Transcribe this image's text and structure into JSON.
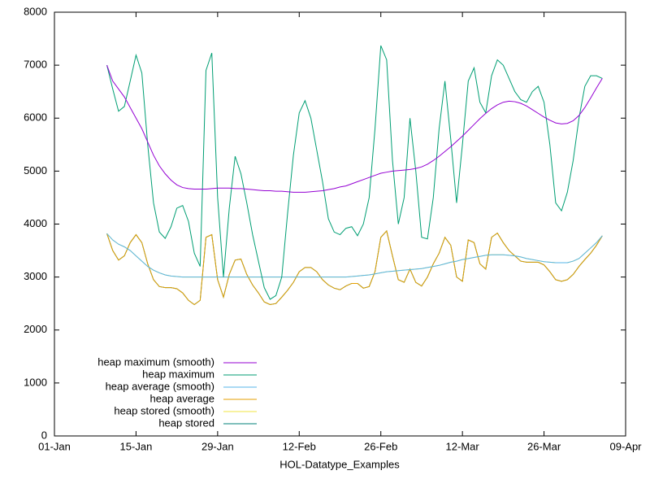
{
  "chart_data": {
    "type": "line",
    "xlabel": "HOL-Datatype_Examples",
    "xlim": [
      0,
      98
    ],
    "xticks": [
      {
        "value": 0,
        "label": "01-Jan"
      },
      {
        "value": 14,
        "label": "15-Jan"
      },
      {
        "value": 28,
        "label": "29-Jan"
      },
      {
        "value": 42,
        "label": "12-Feb"
      },
      {
        "value": 56,
        "label": "26-Feb"
      },
      {
        "value": 70,
        "label": "12-Mar"
      },
      {
        "value": 84,
        "label": "26-Mar"
      },
      {
        "value": 98,
        "label": "09-Apr"
      }
    ],
    "ylim": [
      0,
      8000
    ],
    "yticks": [
      0,
      1000,
      2000,
      3000,
      4000,
      5000,
      6000,
      7000,
      8000
    ],
    "legend": "bottom left",
    "x": [
      9,
      10,
      11,
      12,
      13,
      14,
      15,
      16,
      17,
      18,
      19,
      20,
      21,
      22,
      23,
      24,
      25,
      26,
      27,
      28,
      29,
      30,
      31,
      32,
      33,
      34,
      35,
      36,
      37,
      38,
      39,
      40,
      41,
      42,
      43,
      44,
      45,
      46,
      47,
      48,
      49,
      50,
      51,
      52,
      53,
      54,
      55,
      56,
      57,
      58,
      59,
      60,
      61,
      62,
      63,
      64,
      65,
      66,
      67,
      68,
      69,
      70,
      71,
      72,
      73,
      74,
      75,
      76,
      77,
      78,
      79,
      80,
      81,
      82,
      83,
      84,
      85,
      86,
      87,
      88,
      89,
      90,
      91,
      92,
      93,
      94
    ],
    "series": [
      {
        "name": "heap maximum (smooth)",
        "color": "#9400d3",
        "values": [
          7000,
          6700,
          6550,
          6400,
          6200,
          6000,
          5800,
          5550,
          5300,
          5100,
          4950,
          4830,
          4740,
          4690,
          4670,
          4660,
          4660,
          4660,
          4670,
          4680,
          4680,
          4680,
          4670,
          4670,
          4660,
          4650,
          4640,
          4630,
          4630,
          4620,
          4620,
          4610,
          4600,
          4600,
          4600,
          4610,
          4620,
          4630,
          4650,
          4670,
          4700,
          4720,
          4760,
          4800,
          4840,
          4880,
          4920,
          4960,
          4980,
          5000,
          5010,
          5020,
          5030,
          5050,
          5080,
          5130,
          5200,
          5280,
          5370,
          5460,
          5560,
          5660,
          5770,
          5880,
          5990,
          6090,
          6180,
          6250,
          6300,
          6320,
          6310,
          6280,
          6230,
          6160,
          6090,
          6020,
          5960,
          5910,
          5890,
          5900,
          5950,
          6050,
          6200,
          6380,
          6570,
          6750
        ]
      },
      {
        "name": "heap maximum",
        "color": "#009e73",
        "values": [
          7000,
          6550,
          6130,
          6220,
          6700,
          7190,
          6850,
          5500,
          4400,
          3850,
          3730,
          3950,
          4300,
          4350,
          4050,
          3450,
          3200,
          6900,
          7230,
          4500,
          3000,
          4300,
          5280,
          4950,
          4400,
          3800,
          3300,
          2800,
          2580,
          2650,
          3000,
          4200,
          5300,
          6100,
          6330,
          6000,
          5400,
          4800,
          4100,
          3850,
          3800,
          3920,
          3950,
          3780,
          4000,
          4500,
          5800,
          7370,
          7100,
          5200,
          4000,
          4500,
          6000,
          5000,
          3750,
          3720,
          4500,
          5800,
          6700,
          5600,
          4400,
          5500,
          6700,
          6950,
          6300,
          6100,
          6800,
          7100,
          7000,
          6750,
          6500,
          6350,
          6300,
          6500,
          6600,
          6300,
          5500,
          4400,
          4250,
          4600,
          5200,
          6000,
          6600,
          6800,
          6800,
          6750
        ]
      },
      {
        "name": "heap average (smooth)",
        "color": "#56b4e9",
        "values": [
          3820,
          3700,
          3620,
          3570,
          3500,
          3400,
          3300,
          3200,
          3130,
          3080,
          3040,
          3020,
          3010,
          3000,
          3000,
          3000,
          3000,
          3000,
          3000,
          3000,
          3000,
          3000,
          3000,
          3000,
          3000,
          3000,
          3000,
          3000,
          3000,
          3000,
          3000,
          3000,
          3000,
          3000,
          3000,
          3000,
          3000,
          3000,
          3000,
          3000,
          3000,
          3000,
          3010,
          3020,
          3030,
          3040,
          3060,
          3080,
          3100,
          3110,
          3120,
          3130,
          3140,
          3150,
          3160,
          3180,
          3200,
          3220,
          3250,
          3280,
          3300,
          3330,
          3350,
          3370,
          3390,
          3410,
          3420,
          3420,
          3420,
          3410,
          3400,
          3380,
          3350,
          3330,
          3310,
          3290,
          3280,
          3270,
          3270,
          3270,
          3300,
          3350,
          3450,
          3550,
          3650,
          3780
        ]
      },
      {
        "name": "heap average",
        "color": "#e69f00",
        "values": [
          3820,
          3500,
          3320,
          3400,
          3650,
          3800,
          3650,
          3250,
          2950,
          2820,
          2800,
          2800,
          2780,
          2700,
          2560,
          2480,
          2560,
          3750,
          3800,
          2950,
          2620,
          3050,
          3320,
          3340,
          3050,
          2850,
          2700,
          2530,
          2480,
          2500,
          2620,
          2750,
          2900,
          3100,
          3180,
          3180,
          3100,
          2950,
          2850,
          2790,
          2760,
          2830,
          2880,
          2880,
          2790,
          2820,
          3100,
          3750,
          3870,
          3400,
          2950,
          2900,
          3150,
          2900,
          2830,
          3000,
          3250,
          3450,
          3750,
          3600,
          3000,
          2920,
          3700,
          3650,
          3250,
          3150,
          3750,
          3830,
          3650,
          3500,
          3400,
          3300,
          3280,
          3280,
          3280,
          3230,
          3100,
          2950,
          2920,
          2950,
          3050,
          3200,
          3330,
          3450,
          3600,
          3780
        ]
      },
      {
        "name": "heap stored (smooth)",
        "color": "#f0e442",
        "values": [
          3820,
          3700,
          3620,
          3570,
          3500,
          3400,
          3300,
          3200,
          3130,
          3080,
          3040,
          3020,
          3010,
          3000,
          3000,
          3000,
          3000,
          3000,
          3000,
          3000,
          3000,
          3000,
          3000,
          3000,
          3000,
          3000,
          3000,
          3000,
          3000,
          3000,
          3000,
          3000,
          3000,
          3000,
          3000,
          3000,
          3000,
          3000,
          3000,
          3000,
          3000,
          3000,
          3010,
          3020,
          3030,
          3040,
          3060,
          3080,
          3100,
          3110,
          3120,
          3130,
          3140,
          3150,
          3160,
          3180,
          3200,
          3220,
          3250,
          3280,
          3300,
          3330,
          3350,
          3370,
          3390,
          3410,
          3420,
          3420,
          3420,
          3410,
          3400,
          3380,
          3350,
          3330,
          3310,
          3290,
          3280,
          3270,
          3270,
          3270,
          3300,
          3350,
          3450,
          3550,
          3650,
          3780
        ]
      },
      {
        "name": "heap stored",
        "color": "#00807a",
        "values": [
          3820,
          3500,
          3320,
          3400,
          3650,
          3800,
          3650,
          3250,
          2950,
          2820,
          2800,
          2800,
          2780,
          2700,
          2560,
          2480,
          2560,
          3750,
          3800,
          2950,
          2620,
          3050,
          3320,
          3340,
          3050,
          2850,
          2700,
          2530,
          2480,
          2500,
          2620,
          2750,
          2900,
          3100,
          3180,
          3180,
          3100,
          2950,
          2850,
          2790,
          2760,
          2830,
          2880,
          2880,
          2790,
          2820,
          3100,
          3750,
          3870,
          3400,
          2950,
          2900,
          3150,
          2900,
          2830,
          3000,
          3250,
          3450,
          3750,
          3600,
          3000,
          2920,
          3700,
          3650,
          3250,
          3150,
          3750,
          3830,
          3650,
          3500,
          3400,
          3300,
          3280,
          3280,
          3280,
          3230,
          3100,
          2950,
          2920,
          2950,
          3050,
          3200,
          3330,
          3450,
          3600,
          3780
        ]
      }
    ]
  }
}
